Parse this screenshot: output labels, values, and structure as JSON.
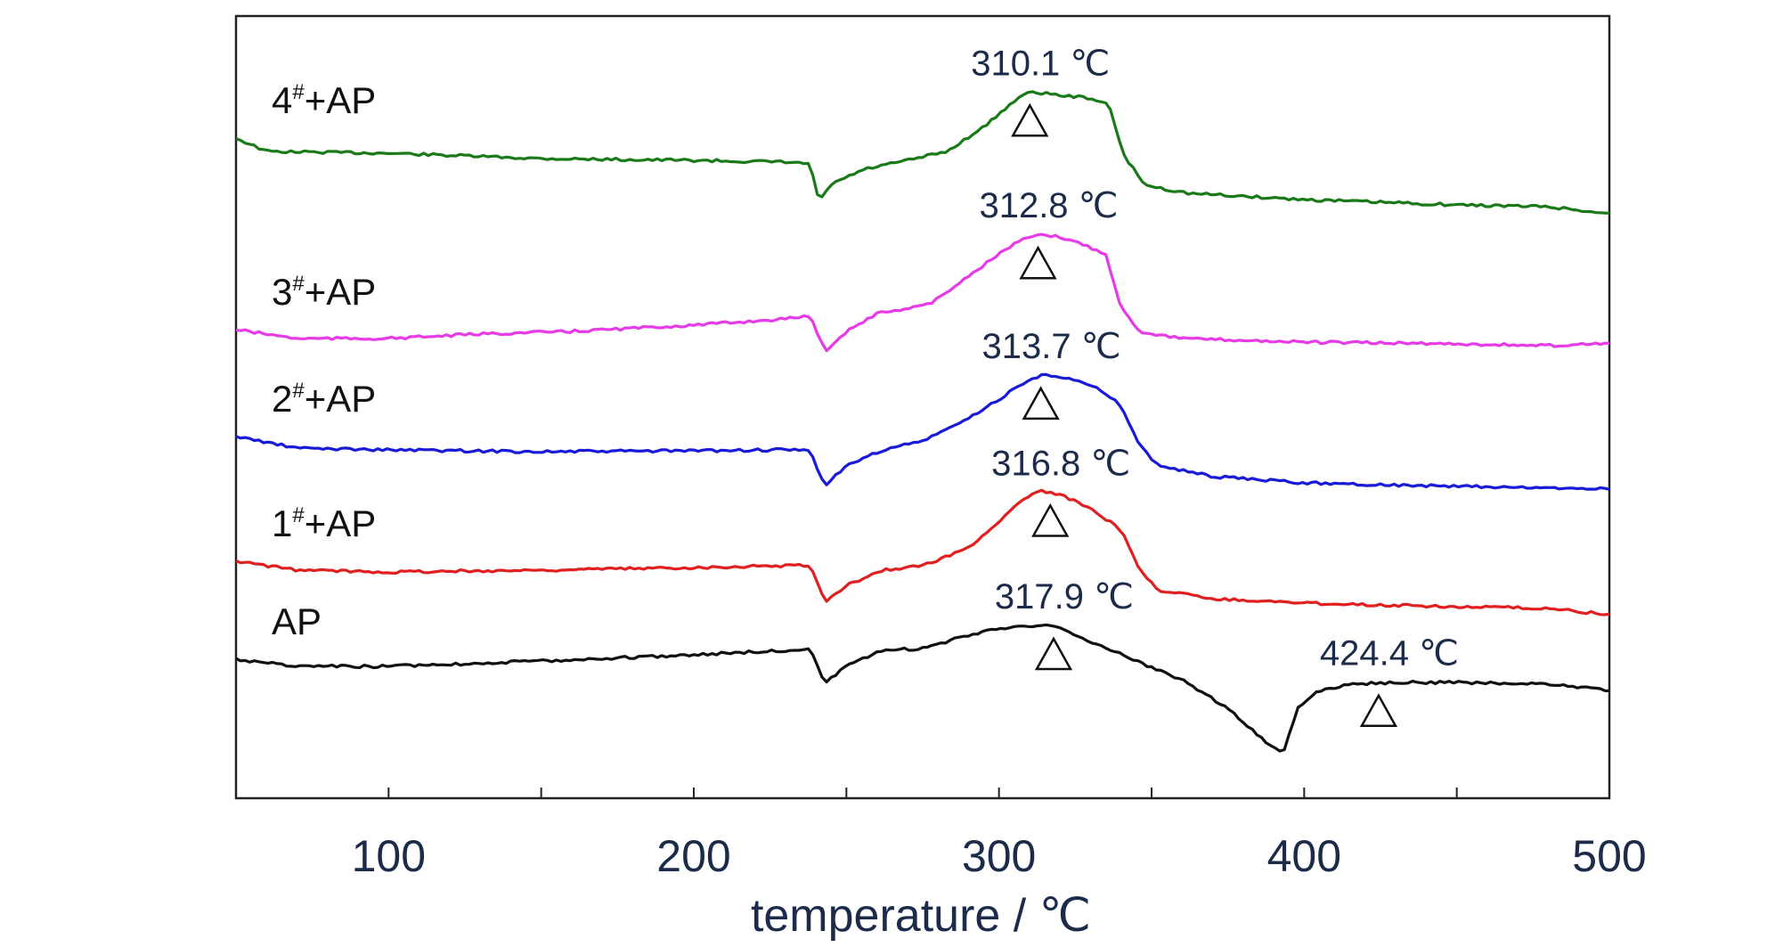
{
  "chart_data": {
    "type": "line",
    "title": "",
    "xlabel": "temperature / ℃",
    "ylabel": "",
    "xlim": [
      50,
      500
    ],
    "x_ticks": [
      100,
      200,
      300,
      400,
      500
    ],
    "y_ticks_shown": false,
    "grid": false,
    "series": [
      {
        "name": "4#+AP",
        "label_main": "4",
        "label_sup": "#",
        "label_tail": "+AP",
        "color": "#1a7a1a",
        "points": [
          [
            50,
            155
          ],
          [
            60,
            170
          ],
          [
            100,
            172
          ],
          [
            150,
            178
          ],
          [
            200,
            180
          ],
          [
            230,
            182
          ],
          [
            238,
            184
          ],
          [
            241,
            225
          ],
          [
            246,
            205
          ],
          [
            256,
            190
          ],
          [
            270,
            180
          ],
          [
            283,
            170
          ],
          [
            296,
            140
          ],
          [
            306,
            110
          ],
          [
            311,
            103
          ],
          [
            320,
            107
          ],
          [
            330,
            110
          ],
          [
            336,
            118
          ],
          [
            341,
            175
          ],
          [
            348,
            208
          ],
          [
            362,
            217
          ],
          [
            400,
            224
          ],
          [
            450,
            230
          ],
          [
            480,
            232
          ],
          [
            500,
            240
          ]
        ],
        "peaks": [
          {
            "x": 310.1,
            "label": "310.1 ℃"
          }
        ]
      },
      {
        "name": "3#+AP",
        "label_main": "3",
        "label_sup": "#",
        "label_tail": "+AP",
        "color": "#e63be6",
        "points": [
          [
            50,
            370
          ],
          [
            70,
            380
          ],
          [
            100,
            380
          ],
          [
            130,
            375
          ],
          [
            160,
            372
          ],
          [
            200,
            365
          ],
          [
            230,
            358
          ],
          [
            238,
            354
          ],
          [
            243,
            394
          ],
          [
            250,
            372
          ],
          [
            260,
            352
          ],
          [
            270,
            346
          ],
          [
            278,
            340
          ],
          [
            290,
            310
          ],
          [
            300,
            285
          ],
          [
            307,
            270
          ],
          [
            313,
            264
          ],
          [
            320,
            266
          ],
          [
            328,
            275
          ],
          [
            335,
            285
          ],
          [
            340,
            345
          ],
          [
            346,
            372
          ],
          [
            360,
            380
          ],
          [
            400,
            384
          ],
          [
            450,
            386
          ],
          [
            480,
            388
          ],
          [
            500,
            385
          ]
        ],
        "peaks": [
          {
            "x": 312.8,
            "label": "312.8 ℃"
          }
        ]
      },
      {
        "name": "2#+AP",
        "label_main": "2",
        "label_sup": "#",
        "label_tail": "+AP",
        "color": "#1a1ad9",
        "points": [
          [
            50,
            490
          ],
          [
            70,
            503
          ],
          [
            100,
            505
          ],
          [
            150,
            507
          ],
          [
            200,
            506
          ],
          [
            230,
            505
          ],
          [
            238,
            506
          ],
          [
            243,
            545
          ],
          [
            250,
            523
          ],
          [
            262,
            505
          ],
          [
            275,
            495
          ],
          [
            290,
            470
          ],
          [
            300,
            448
          ],
          [
            308,
            430
          ],
          [
            315,
            420
          ],
          [
            323,
            424
          ],
          [
            332,
            436
          ],
          [
            340,
            455
          ],
          [
            346,
            500
          ],
          [
            352,
            522
          ],
          [
            370,
            535
          ],
          [
            400,
            542
          ],
          [
            450,
            546
          ],
          [
            480,
            548
          ],
          [
            500,
            548
          ]
        ],
        "peaks": [
          {
            "x": 313.7,
            "label": "313.7 ℃"
          }
        ]
      },
      {
        "name": "1#+AP",
        "label_main": "1",
        "label_sup": "#",
        "label_tail": "+AP",
        "color": "#e02020",
        "points": [
          [
            50,
            630
          ],
          [
            70,
            640
          ],
          [
            100,
            642
          ],
          [
            150,
            640
          ],
          [
            200,
            637
          ],
          [
            230,
            635
          ],
          [
            238,
            634
          ],
          [
            243,
            676
          ],
          [
            250,
            657
          ],
          [
            262,
            640
          ],
          [
            275,
            635
          ],
          [
            290,
            615
          ],
          [
            300,
            585
          ],
          [
            308,
            560
          ],
          [
            314,
            551
          ],
          [
            322,
            558
          ],
          [
            330,
            570
          ],
          [
            340,
            595
          ],
          [
            346,
            640
          ],
          [
            352,
            662
          ],
          [
            370,
            672
          ],
          [
            400,
            677
          ],
          [
            450,
            681
          ],
          [
            480,
            683
          ],
          [
            500,
            690
          ]
        ],
        "peaks": [
          {
            "x": 316.8,
            "label": "316.8 ℃"
          }
        ]
      },
      {
        "name": "AP",
        "label_main": "AP",
        "label_sup": "",
        "label_tail": "",
        "color": "#111111",
        "points": [
          [
            50,
            740
          ],
          [
            70,
            748
          ],
          [
            100,
            748
          ],
          [
            150,
            742
          ],
          [
            200,
            735
          ],
          [
            230,
            730
          ],
          [
            238,
            728
          ],
          [
            243,
            767
          ],
          [
            250,
            748
          ],
          [
            262,
            730
          ],
          [
            275,
            728
          ],
          [
            290,
            713
          ],
          [
            300,
            705
          ],
          [
            310,
            702
          ],
          [
            318,
            703
          ],
          [
            330,
            720
          ],
          [
            345,
            742
          ],
          [
            360,
            763
          ],
          [
            375,
            795
          ],
          [
            390,
            840
          ],
          [
            393,
            846
          ],
          [
            398,
            795
          ],
          [
            405,
            775
          ],
          [
            415,
            768
          ],
          [
            430,
            766
          ],
          [
            450,
            766
          ],
          [
            480,
            768
          ],
          [
            500,
            775
          ]
        ],
        "peaks": [
          {
            "x": 317.9,
            "label": "317.9 ℃"
          },
          {
            "x": 424.4,
            "label": "424.4 ℃"
          }
        ]
      }
    ]
  }
}
